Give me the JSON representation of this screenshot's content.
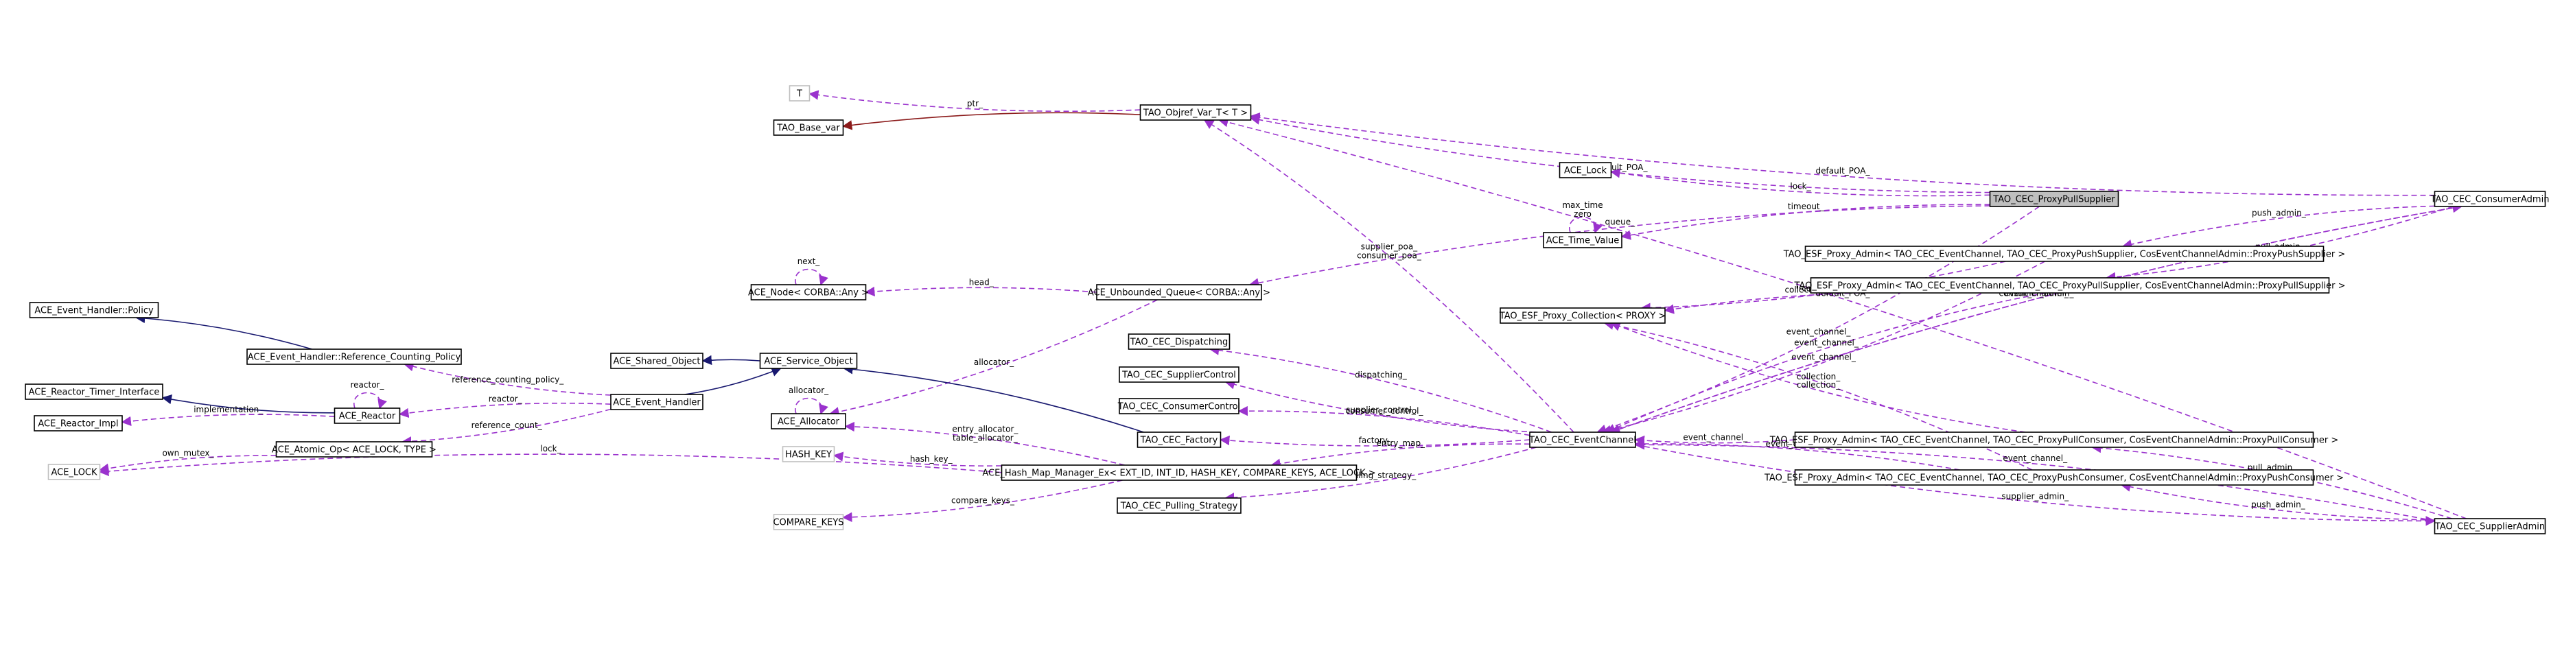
{
  "nodes": [
    {
      "id": "T",
      "label": "T",
      "style": "grey"
    },
    {
      "id": "TAO_Base_var",
      "label": "TAO_Base_var"
    },
    {
      "id": "TAO_Objref_Var_T",
      "label": "TAO_Objref_Var_T< T >"
    },
    {
      "id": "ACE_Lock",
      "label": "ACE_Lock"
    },
    {
      "id": "ACE_Time_Value",
      "label": "ACE_Time_Value"
    },
    {
      "id": "TAO_CEC_ProxyPullSupplier",
      "label": "TAO_CEC_ProxyPullSupplier",
      "style": "focus"
    },
    {
      "id": "TAO_CEC_ConsumerAdmin",
      "label": "TAO_CEC_ConsumerAdmin"
    },
    {
      "id": "TAO_ESF_Proxy_Admin_PushSupplier",
      "label": "TAO_ESF_Proxy_Admin< TAO_CEC_EventChannel, TAO_CEC_ProxyPushSupplier, CosEventChannelAdmin::ProxyPushSupplier >"
    },
    {
      "id": "TAO_ESF_Proxy_Admin_PullSupplier",
      "label": "TAO_ESF_Proxy_Admin< TAO_CEC_EventChannel, TAO_CEC_ProxyPullSupplier, CosEventChannelAdmin::ProxyPullSupplier >"
    },
    {
      "id": "TAO_ESF_Proxy_Collection",
      "label": "TAO_ESF_Proxy_Collection< PROXY >"
    },
    {
      "id": "ACE_Node",
      "label": "ACE_Node< CORBA::Any >"
    },
    {
      "id": "ACE_Unbounded_Queue",
      "label": "ACE_Unbounded_Queue< CORBA::Any >"
    },
    {
      "id": "ACE_Event_Handler_Policy",
      "label": "ACE_Event_Handler::Policy"
    },
    {
      "id": "ACE_Event_Handler_RCP",
      "label": "ACE_Event_Handler::Reference_Counting_Policy"
    },
    {
      "id": "ACE_Shared_Object",
      "label": "ACE_Shared_Object"
    },
    {
      "id": "ACE_Service_Object",
      "label": "ACE_Service_Object"
    },
    {
      "id": "TAO_CEC_Dispatching",
      "label": "TAO_CEC_Dispatching"
    },
    {
      "id": "ACE_Reactor_Timer_Interface",
      "label": "ACE_Reactor_Timer_Interface"
    },
    {
      "id": "ACE_Event_Handler",
      "label": "ACE_Event_Handler"
    },
    {
      "id": "TAO_CEC_SupplierControl",
      "label": "TAO_CEC_SupplierControl"
    },
    {
      "id": "ACE_Reactor_Impl",
      "label": "ACE_Reactor_Impl"
    },
    {
      "id": "ACE_Reactor",
      "label": "ACE_Reactor"
    },
    {
      "id": "ACE_Allocator",
      "label": "ACE_Allocator"
    },
    {
      "id": "TAO_CEC_ConsumerControl",
      "label": "TAO_CEC_ConsumerControl"
    },
    {
      "id": "ACE_Atomic_Op",
      "label": "ACE_Atomic_Op< ACE_LOCK, TYPE >"
    },
    {
      "id": "TAO_CEC_Factory",
      "label": "TAO_CEC_Factory"
    },
    {
      "id": "TAO_CEC_EventChannel",
      "label": "TAO_CEC_EventChannel"
    },
    {
      "id": "TAO_ESF_Proxy_Admin_PullConsumer",
      "label": "TAO_ESF_Proxy_Admin< TAO_CEC_EventChannel, TAO_CEC_ProxyPullConsumer, CosEventChannelAdmin::ProxyPullConsumer >"
    },
    {
      "id": "HASH_KEY",
      "label": "HASH_KEY",
      "style": "grey"
    },
    {
      "id": "ACE_LOCK",
      "label": "ACE_LOCK",
      "style": "grey"
    },
    {
      "id": "ACE_Hash_Map_Manager_Ex",
      "label": "ACE_Hash_Map_Manager_Ex< EXT_ID, INT_ID, HASH_KEY, COMPARE_KEYS, ACE_LOCK >"
    },
    {
      "id": "TAO_ESF_Proxy_Admin_PushConsumer",
      "label": "TAO_ESF_Proxy_Admin< TAO_CEC_EventChannel, TAO_CEC_ProxyPushConsumer, CosEventChannelAdmin::ProxyPushConsumer >"
    },
    {
      "id": "TAO_CEC_Pulling_Strategy",
      "label": "TAO_CEC_Pulling_Strategy"
    },
    {
      "id": "COMPARE_KEYS",
      "label": "COMPARE_KEYS",
      "style": "grey"
    },
    {
      "id": "TAO_CEC_SupplierAdmin",
      "label": "TAO_CEC_SupplierAdmin"
    }
  ],
  "edges": [
    {
      "from": "TAO_Objref_Var_T",
      "to": "T",
      "label": "ptr_",
      "kind": "use"
    },
    {
      "from": "TAO_Objref_Var_T",
      "to": "TAO_Base_var",
      "label": "",
      "kind": "dep"
    },
    {
      "from": "TAO_CEC_ConsumerAdmin",
      "to": "TAO_Objref_Var_T",
      "label": "default_POA_",
      "kind": "use"
    },
    {
      "from": "TAO_CEC_SupplierAdmin",
      "to": "TAO_Objref_Var_T",
      "label": "default_POA_",
      "kind": "use"
    },
    {
      "from": "TAO_CEC_ProxyPullSupplier",
      "to": "TAO_Objref_Var_T",
      "label": "default_POA_",
      "kind": "use"
    },
    {
      "from": "TAO_CEC_EventChannel",
      "to": "TAO_Objref_Var_T",
      "label": "supplier_poa_\nconsumer_poa_",
      "kind": "use"
    },
    {
      "from": "TAO_CEC_ProxyPullSupplier",
      "to": "ACE_Lock",
      "label": "lock_",
      "kind": "use"
    },
    {
      "from": "TAO_CEC_ProxyPullSupplier",
      "to": "ACE_Time_Value",
      "label": "timeout_",
      "kind": "use"
    },
    {
      "from": "ACE_Time_Value",
      "to": "ACE_Time_Value",
      "label": "max_time\nzero",
      "kind": "use"
    },
    {
      "from": "TAO_CEC_ProxyPullSupplier",
      "to": "ACE_Unbounded_Queue",
      "label": "queue_",
      "kind": "use"
    },
    {
      "from": "TAO_CEC_ProxyPullSupplier",
      "to": "TAO_CEC_EventChannel",
      "label": "event_channel_",
      "kind": "use"
    },
    {
      "from": "TAO_CEC_ConsumerAdmin",
      "to": "TAO_ESF_Proxy_Admin_PushSupplier",
      "label": "push_admin_",
      "kind": "use"
    },
    {
      "from": "TAO_CEC_ConsumerAdmin",
      "to": "TAO_ESF_Proxy_Admin_PullSupplier",
      "label": "pull_admin_",
      "kind": "use"
    },
    {
      "from": "TAO_CEC_ConsumerAdmin",
      "to": "TAO_CEC_EventChannel",
      "label": "event_channel_",
      "kind": "use"
    },
    {
      "from": "TAO_ESF_Proxy_Admin_PushSupplier",
      "to": "TAO_ESF_Proxy_Collection",
      "label": "collection_",
      "kind": "use"
    },
    {
      "from": "TAO_ESF_Proxy_Admin_PullSupplier",
      "to": "TAO_ESF_Proxy_Collection",
      "label": "collection_",
      "kind": "use"
    },
    {
      "from": "TAO_ESF_Proxy_Admin_PullConsumer",
      "to": "TAO_ESF_Proxy_Collection",
      "label": "collection_",
      "kind": "use"
    },
    {
      "from": "TAO_ESF_Proxy_Admin_PushConsumer",
      "to": "TAO_ESF_Proxy_Collection",
      "label": "collection_",
      "kind": "use"
    },
    {
      "from": "TAO_ESF_Proxy_Admin_PushSupplier",
      "to": "TAO_CEC_EventChannel",
      "label": "event_channel_",
      "kind": "use"
    },
    {
      "from": "TAO_ESF_Proxy_Admin_PullSupplier",
      "to": "TAO_CEC_EventChannel",
      "label": "event_channel_",
      "kind": "use"
    },
    {
      "from": "TAO_ESF_Proxy_Admin_PullConsumer",
      "to": "TAO_CEC_EventChannel",
      "label": "event_channel_",
      "kind": "use"
    },
    {
      "from": "TAO_ESF_Proxy_Admin_PushConsumer",
      "to": "TAO_CEC_EventChannel",
      "label": "event_channel_",
      "kind": "use"
    },
    {
      "from": "ACE_Node",
      "to": "ACE_Node",
      "label": "next_",
      "kind": "use"
    },
    {
      "from": "ACE_Unbounded_Queue",
      "to": "ACE_Node",
      "label": "head_",
      "kind": "use"
    },
    {
      "from": "ACE_Unbounded_Queue",
      "to": "ACE_Allocator",
      "label": "allocator_",
      "kind": "use"
    },
    {
      "from": "ACE_Event_Handler_RCP",
      "to": "ACE_Event_Handler_Policy",
      "label": "",
      "kind": "inh"
    },
    {
      "from": "ACE_Event_Handler",
      "to": "ACE_Event_Handler_RCP",
      "label": "reference_counting_policy_",
      "kind": "use"
    },
    {
      "from": "ACE_Service_Object",
      "to": "ACE_Shared_Object",
      "label": "",
      "kind": "inh"
    },
    {
      "from": "ACE_Event_Handler",
      "to": "ACE_Service_Object",
      "label": "",
      "kind": "inh"
    },
    {
      "from": "TAO_CEC_Factory",
      "to": "ACE_Service_Object",
      "label": "",
      "kind": "inh"
    },
    {
      "from": "ACE_Reactor",
      "to": "ACE_Reactor_Timer_Interface",
      "label": "",
      "kind": "inh"
    },
    {
      "from": "ACE_Reactor",
      "to": "ACE_Reactor_Impl",
      "label": "implementation_",
      "kind": "use"
    },
    {
      "from": "ACE_Reactor",
      "to": "ACE_Reactor",
      "label": "reactor_",
      "kind": "use"
    },
    {
      "from": "ACE_Event_Handler",
      "to": "ACE_Reactor",
      "label": "reactor_",
      "kind": "use"
    },
    {
      "from": "ACE_Event_Handler",
      "to": "ACE_Atomic_Op",
      "label": "reference_count_",
      "kind": "use"
    },
    {
      "from": "ACE_Atomic_Op",
      "to": "ACE_LOCK",
      "label": "own_mutex_",
      "kind": "use"
    },
    {
      "from": "ACE_Allocator",
      "to": "ACE_Allocator",
      "label": "allocator_",
      "kind": "use"
    },
    {
      "from": "ACE_Hash_Map_Manager_Ex",
      "to": "ACE_Allocator",
      "label": "entry_allocator_\ntable_allocator_",
      "kind": "use"
    },
    {
      "from": "ACE_Hash_Map_Manager_Ex",
      "to": "HASH_KEY",
      "label": "hash_key_",
      "kind": "use"
    },
    {
      "from": "ACE_Hash_Map_Manager_Ex",
      "to": "ACE_LOCK",
      "label": "lock_",
      "kind": "use"
    },
    {
      "from": "ACE_Hash_Map_Manager_Ex",
      "to": "COMPARE_KEYS",
      "label": "compare_keys_",
      "kind": "use"
    },
    {
      "from": "TAO_CEC_EventChannel",
      "to": "TAO_CEC_Dispatching",
      "label": "dispatching_",
      "kind": "use"
    },
    {
      "from": "TAO_CEC_EventChannel",
      "to": "TAO_CEC_SupplierControl",
      "label": "supplier_control_",
      "kind": "use"
    },
    {
      "from": "TAO_CEC_EventChannel",
      "to": "TAO_CEC_ConsumerControl",
      "label": "consumer_control_",
      "kind": "use"
    },
    {
      "from": "TAO_CEC_EventChannel",
      "to": "TAO_CEC_Factory",
      "label": "factory_",
      "kind": "use"
    },
    {
      "from": "TAO_CEC_EventChannel",
      "to": "ACE_Hash_Map_Manager_Ex",
      "label": "entry_map_",
      "kind": "use"
    },
    {
      "from": "TAO_CEC_EventChannel",
      "to": "TAO_CEC_Pulling_Strategy",
      "label": "pulling_strategy_",
      "kind": "use"
    },
    {
      "from": "TAO_CEC_EventChannel",
      "to": "TAO_CEC_ConsumerAdmin",
      "label": "consumer_admin_",
      "kind": "use"
    },
    {
      "from": "TAO_CEC_EventChannel",
      "to": "TAO_CEC_SupplierAdmin",
      "label": "supplier_admin_",
      "kind": "use"
    },
    {
      "from": "TAO_CEC_SupplierAdmin",
      "to": "TAO_ESF_Proxy_Admin_PullConsumer",
      "label": "pull_admin_",
      "kind": "use"
    },
    {
      "from": "TAO_CEC_SupplierAdmin",
      "to": "TAO_ESF_Proxy_Admin_PushConsumer",
      "label": "push_admin_",
      "kind": "use"
    },
    {
      "from": "TAO_CEC_SupplierAdmin",
      "to": "TAO_CEC_EventChannel",
      "label": "event_channel_",
      "kind": "use"
    }
  ]
}
